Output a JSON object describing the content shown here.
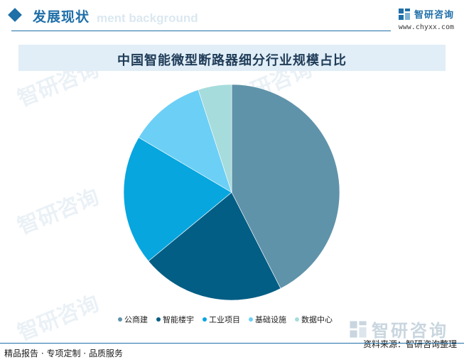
{
  "header": {
    "title": "发展现状",
    "ghost_text": "ment background",
    "brand_name": "智研咨询",
    "brand_url": "www.chyxx.com",
    "accent_color": "#1f6fa8"
  },
  "chart_data": {
    "type": "pie",
    "title": "中国智能微型断路器细分行业规模占比",
    "categories": [
      "公商建",
      "智能楼宇",
      "工业项目",
      "基础设施",
      "数据中心"
    ],
    "values": [
      42.5,
      21.5,
      19.5,
      11.5,
      5.0
    ],
    "colors": [
      "#5f93aa",
      "#035e85",
      "#07a6df",
      "#6ccff6",
      "#a6dcdc"
    ],
    "legend_position": "bottom"
  },
  "watermark": {
    "text": "智研咨询"
  },
  "footer": {
    "left": "精品报告 · 专项定制 · 品质服务",
    "source": "资料来源：智研咨询整理"
  }
}
